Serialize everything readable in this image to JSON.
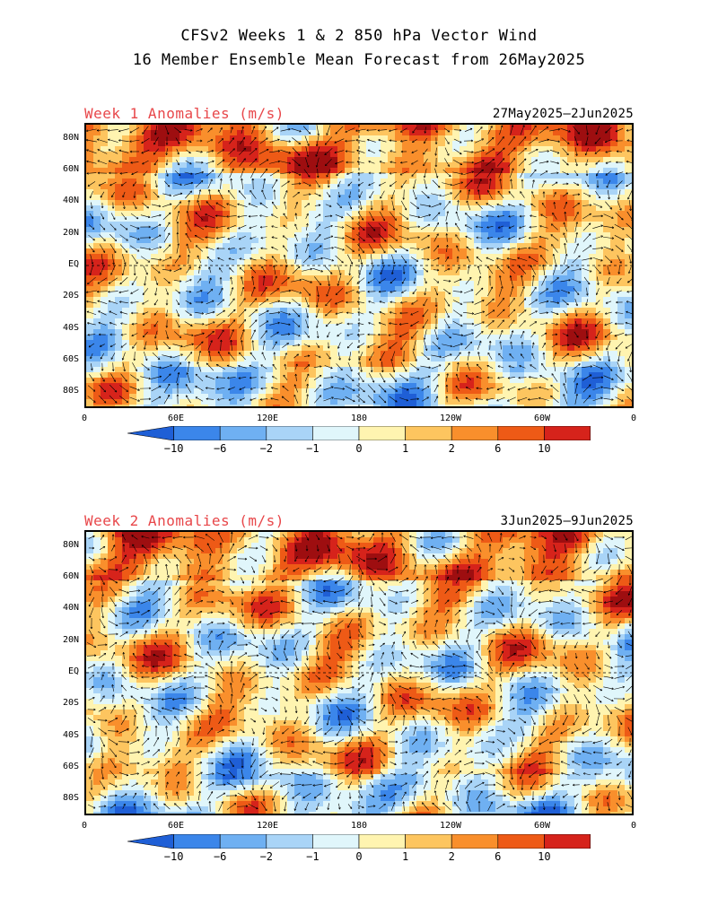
{
  "header": {
    "line1": "CFSv2 Weeks 1 & 2 850 hPa Vector Wind",
    "line2": "16 Member Ensemble Mean Forecast from 26May2025"
  },
  "panels": [
    {
      "label": "Week 1 Anomalies (m/s)",
      "dates": "27May2025—2Jun2025"
    },
    {
      "label": "Week 2 Anomalies (m/s)",
      "dates": "3Jun2025—9Jun2025"
    }
  ],
  "lat_labels": [
    "80N",
    "60N",
    "40N",
    "20N",
    "EQ",
    "20S",
    "40S",
    "60S",
    "80S"
  ],
  "lon_labels": [
    "0",
    "60E",
    "120E",
    "180",
    "120W",
    "60W",
    "0"
  ],
  "colorbar": {
    "labels": [
      "−10",
      "−6",
      "−2",
      "−1",
      "0",
      "1",
      "2",
      "6",
      "10"
    ],
    "colors": [
      "#1f5fd6",
      "#3b86ea",
      "#6fb0f2",
      "#a9d4f7",
      "#e0f6fb",
      "#fff4b0",
      "#fdc55f",
      "#f98f2c",
      "#ee5a16",
      "#d6231b",
      "#9e0e10"
    ]
  }
}
